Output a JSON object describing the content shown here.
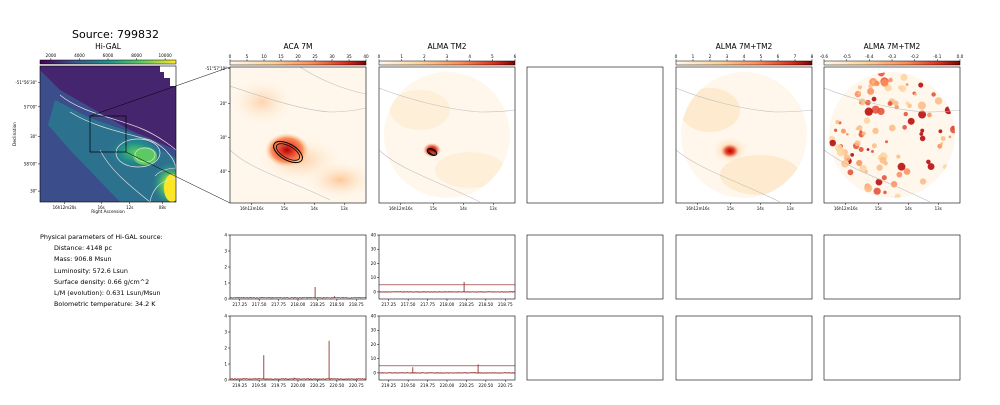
{
  "source_title": "Source: 799832",
  "params": {
    "header": "Physical parameters of Hi-GAL source:",
    "lines": [
      "Distance: 4148 pc",
      "Mass: 906.8 Msun",
      "Luminosity: 572.6 Lsun",
      "Surface density: 0.66 g/cm^2",
      "L/M (evolution): 0.631 Lsun/Msun",
      "Bolometric temperature: 34.2 K"
    ]
  },
  "colors": {
    "higal_cmap": "viridis",
    "alma_cmap": "OrRd",
    "spectrum": "#8b1a1a",
    "axis": "#000000"
  },
  "chart_data": [
    {
      "type": "heatmap",
      "title": "Hi-GAL",
      "colorbar": {
        "ticks": [
          "2000",
          "4000",
          "6000",
          "8000",
          "10000"
        ]
      },
      "xlabel": "Right Ascension",
      "ylabel": "Declination",
      "xticks": [
        "16h12m20s",
        "16s",
        "12s",
        "08s"
      ],
      "yticks": [
        "-51°56'30\"",
        "57'00\"",
        "30\"",
        "58'00\"",
        "30\""
      ]
    },
    {
      "type": "heatmap",
      "title": "ACA 7M",
      "colorbar": {
        "ticks": [
          "0",
          "5",
          "10",
          "15",
          "20",
          "25",
          "30",
          "35",
          "40"
        ]
      },
      "xticks": [
        "16h12m16s",
        "15s",
        "14s",
        "13s"
      ],
      "yticks": [
        "-51°57'10\"",
        "20\"",
        "30\"",
        "40\""
      ]
    },
    {
      "type": "heatmap",
      "title": "ALMA TM2",
      "colorbar": {
        "ticks": [
          "0",
          "1",
          "2",
          "3",
          "4",
          "5",
          "6"
        ]
      },
      "xticks": [
        "16h12m16s",
        "15s",
        "14s",
        "13s"
      ]
    },
    {
      "type": "heatmap",
      "title": "ALMA 7M+TM2",
      "colorbar": {
        "ticks": [
          "0",
          "1",
          "2",
          "3",
          "4",
          "5",
          "6",
          "7",
          "8"
        ]
      },
      "xticks": [
        "16h12m16s",
        "15s",
        "14s",
        "13s"
      ]
    },
    {
      "type": "heatmap",
      "title": "ALMA 7M+TM2",
      "colorbar": {
        "ticks": [
          "-0.6",
          "-0.5",
          "-0.4",
          "-0.3",
          "-0.2",
          "-0.1",
          "0.0"
        ]
      },
      "xticks": [
        "16h12m16s",
        "15s",
        "14s",
        "13s"
      ]
    },
    {
      "type": "line",
      "title": "",
      "x": [
        217.125,
        218.875
      ],
      "ylim": [
        0,
        4
      ],
      "xticks": [
        "217.25",
        "217.50",
        "217.75",
        "218.00",
        "218.25",
        "218.50",
        "218.75"
      ],
      "yticks": [
        "0",
        "1",
        "2",
        "3",
        "4"
      ],
      "peaks": [
        {
          "x": 218.22,
          "y": 0.75
        },
        {
          "x": 218.47,
          "y": 0.18
        }
      ],
      "baseline": 0.08
    },
    {
      "type": "line",
      "title": "",
      "x": [
        217.125,
        218.875
      ],
      "ylim": [
        -5,
        40
      ],
      "xticks": [
        "217.25",
        "217.50",
        "217.75",
        "218.00",
        "218.25",
        "218.50",
        "218.75"
      ],
      "yticks": [
        "0",
        "10",
        "20",
        "30",
        "40"
      ],
      "hlines": [
        5,
        0
      ],
      "peaks": [
        {
          "x": 218.22,
          "y": 7
        }
      ]
    },
    {
      "type": "line",
      "title": "",
      "x": [
        219.125,
        220.875
      ],
      "ylim": [
        0,
        4
      ],
      "xticks": [
        "219.25",
        "219.50",
        "219.75",
        "220.00",
        "220.25",
        "220.50",
        "220.75"
      ],
      "yticks": [
        "0",
        "1",
        "2",
        "3",
        "4"
      ],
      "peaks": [
        {
          "x": 219.56,
          "y": 1.55
        },
        {
          "x": 220.4,
          "y": 2.45
        },
        {
          "x": 219.95,
          "y": 0.15
        }
      ],
      "baseline": 0.07
    },
    {
      "type": "line",
      "title": "",
      "x": [
        219.125,
        220.875
      ],
      "ylim": [
        -5,
        40
      ],
      "xticks": [
        "219.25",
        "219.50",
        "219.75",
        "220.00",
        "220.25",
        "220.50",
        "220.75"
      ],
      "yticks": [
        "0",
        "10",
        "20",
        "30",
        "40"
      ],
      "hlines": [
        5,
        0
      ],
      "peaks": [
        {
          "x": 219.56,
          "y": 4
        },
        {
          "x": 220.4,
          "y": 6
        }
      ]
    }
  ]
}
